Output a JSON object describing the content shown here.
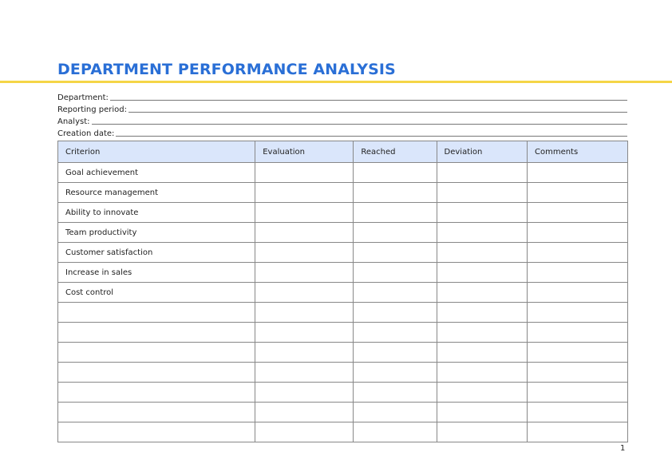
{
  "title": "DEPARTMENT PERFORMANCE ANALYSIS",
  "accent_color": "#2a6fd6",
  "rule_color": "#f5d547",
  "header_bg": "#dae6fb",
  "fields": [
    "Department:",
    "Reporting period:",
    "Analyst:",
    "Creation date:"
  ],
  "table": {
    "columns": [
      "Criterion",
      "Evaluation",
      "Reached",
      "Deviation",
      "Comments"
    ],
    "rows": [
      "Goal achievement",
      "Resource management",
      "Ability to innovate",
      "Team productivity",
      "Customer satisfaction",
      "Increase in sales",
      "Cost control",
      "",
      "",
      "",
      "",
      "",
      "",
      ""
    ]
  },
  "page_number": "1"
}
